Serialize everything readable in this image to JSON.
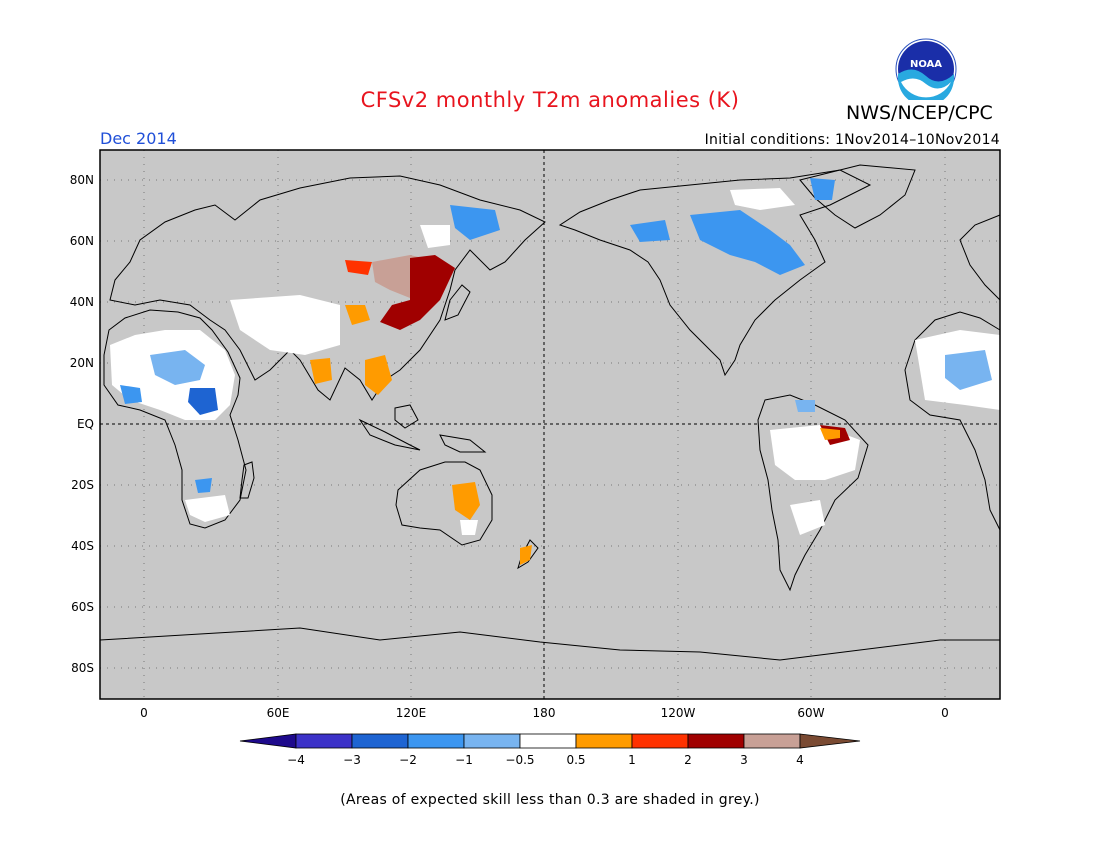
{
  "header": {
    "title": "CFSv2 monthly T2m anomalies (K)",
    "agency": "NWS/NCEP/CPC",
    "logo_text": "NOAA",
    "month": "Dec 2014",
    "initial_conditions": "Initial conditions: 1Nov2014–10Nov2014"
  },
  "map": {
    "projection": "equirectangular",
    "lat_labels": [
      "80N",
      "60N",
      "40N",
      "20N",
      "EQ",
      "20S",
      "40S",
      "60S",
      "80S"
    ],
    "lon_labels": [
      "0",
      "60E",
      "120E",
      "180",
      "120W",
      "60W",
      "0"
    ],
    "ocean_color": "#c8c8c8",
    "colorbar": {
      "tick_labels": [
        "−4",
        "−3",
        "−2",
        "−1",
        "−0.5",
        "0.5",
        "1",
        "2",
        "3",
        "4"
      ],
      "colors": [
        "#1e0a8c",
        "#3c32c8",
        "#1e64d2",
        "#3c96f0",
        "#78b4f0",
        "#ffffff",
        "#ff9b00",
        "#ff3200",
        "#a00000",
        "#c8a096",
        "#7a4a32"
      ]
    }
  },
  "footnote": "(Areas of expected skill less than 0.3 are shaded in grey.)"
}
